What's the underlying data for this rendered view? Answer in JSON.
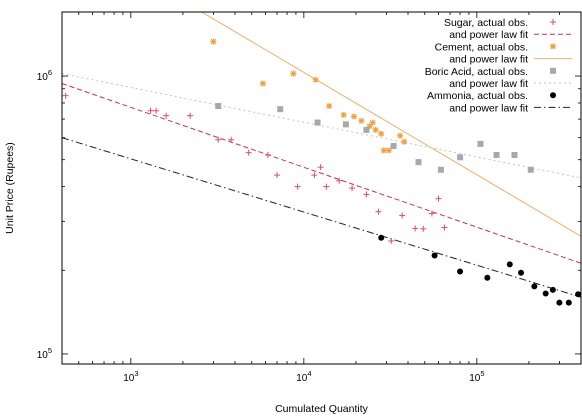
{
  "chart_data": {
    "type": "scatter",
    "title": "",
    "xlabel": "Cumulated Quantity",
    "ylabel": "Unit Price (Rupees)",
    "x_scale": "log",
    "y_scale": "log",
    "xlim": [
      400,
      400000
    ],
    "ylim": [
      92000,
      1700000
    ],
    "grid": false,
    "legend_position": "top-right",
    "x_ticks": [
      {
        "value": 1000,
        "base": "10",
        "exp": "3"
      },
      {
        "value": 10000,
        "base": "10",
        "exp": "4"
      },
      {
        "value": 100000,
        "base": "10",
        "exp": "5"
      }
    ],
    "y_ticks": [
      {
        "value": 100000,
        "base": "10",
        "exp": "5"
      },
      {
        "value": 1000000,
        "base": "10",
        "exp": "6"
      }
    ],
    "series": [
      {
        "name": "Sugar, actual obs.",
        "fit_name": "and power law fit",
        "marker": "plus",
        "color": "#d95068",
        "fit_style": "dashed",
        "fit_color": "#c83250",
        "fit_points": [
          [
            400,
            940000
          ],
          [
            400000,
            212000
          ]
        ],
        "points": [
          [
            420,
            850000
          ],
          [
            1300,
            750000
          ],
          [
            1400,
            750000
          ],
          [
            1600,
            720000
          ],
          [
            2200,
            720000
          ],
          [
            3200,
            590000
          ],
          [
            3800,
            590000
          ],
          [
            4800,
            530000
          ],
          [
            6200,
            520000
          ],
          [
            7000,
            440000
          ],
          [
            9200,
            400000
          ],
          [
            11500,
            440000
          ],
          [
            12500,
            470000
          ],
          [
            13500,
            400000
          ],
          [
            16000,
            420000
          ],
          [
            19000,
            395000
          ],
          [
            23000,
            375000
          ],
          [
            27000,
            325000
          ],
          [
            32000,
            255000
          ],
          [
            37000,
            315000
          ],
          [
            44000,
            283000
          ],
          [
            49000,
            282000
          ],
          [
            55000,
            320000
          ],
          [
            60000,
            362000
          ],
          [
            65000,
            285000
          ]
        ]
      },
      {
        "name": "Cement, actual obs.",
        "fit_name": "and power law fit",
        "marker": "star",
        "color": "#f0a040",
        "fit_style": "solid",
        "fit_color": "#f0b070",
        "fit_points": [
          [
            2200,
            1800000
          ],
          [
            400000,
            265000
          ]
        ],
        "points": [
          [
            3000,
            1330000
          ],
          [
            5800,
            940000
          ],
          [
            8700,
            1020000
          ],
          [
            11700,
            970000
          ],
          [
            14000,
            780000
          ],
          [
            17000,
            725000
          ],
          [
            19500,
            715000
          ],
          [
            21500,
            690000
          ],
          [
            24000,
            660000
          ],
          [
            25000,
            680000
          ],
          [
            26000,
            640000
          ],
          [
            28000,
            620000
          ],
          [
            29000,
            540000
          ],
          [
            31000,
            540000
          ],
          [
            33000,
            560000
          ],
          [
            36000,
            610000
          ],
          [
            38000,
            580000
          ]
        ]
      },
      {
        "name": "Boric Acid, actual obs.",
        "fit_name": "and power law fit",
        "marker": "square",
        "color": "#a8a8a8",
        "fit_style": "dotted",
        "fit_color": "#c4c4c4",
        "fit_points": [
          [
            400,
            1020000
          ],
          [
            400000,
            430000
          ]
        ],
        "points": [
          [
            3200,
            780000
          ],
          [
            7300,
            760000
          ],
          [
            12000,
            680000
          ],
          [
            17500,
            670000
          ],
          [
            23000,
            640000
          ],
          [
            33000,
            560000
          ],
          [
            46000,
            490000
          ],
          [
            62000,
            460000
          ],
          [
            80000,
            510000
          ],
          [
            105000,
            570000
          ],
          [
            130000,
            520000
          ],
          [
            165000,
            520000
          ],
          [
            205000,
            460000
          ]
        ]
      },
      {
        "name": "Ammonia, actual obs.",
        "fit_name": "and power law fit",
        "marker": "circle",
        "color": "#000000",
        "fit_style": "dashdot",
        "fit_color": "#222222",
        "fit_points": [
          [
            400,
            600000
          ],
          [
            400000,
            160000
          ]
        ],
        "points": [
          [
            28000,
            262000
          ],
          [
            57000,
            226000
          ],
          [
            80000,
            198000
          ],
          [
            115000,
            188000
          ],
          [
            155000,
            210000
          ],
          [
            180000,
            196000
          ],
          [
            215000,
            175000
          ],
          [
            250000,
            165000
          ],
          [
            275000,
            170000
          ],
          [
            300000,
            153000
          ],
          [
            340000,
            153000
          ],
          [
            385000,
            164000
          ]
        ]
      }
    ]
  }
}
